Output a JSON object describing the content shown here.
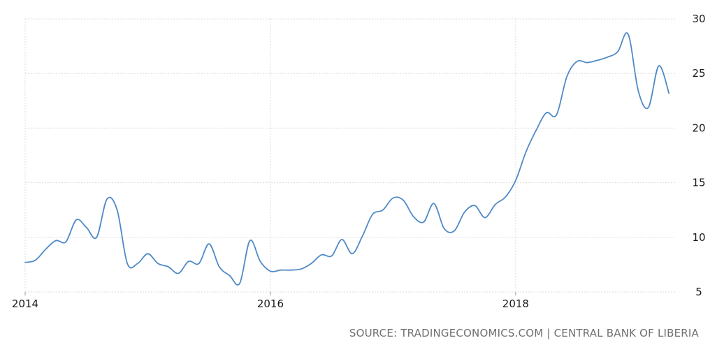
{
  "source_text": "SOURCE: TRADINGECONOMICS.COM | CENTRAL BANK OF LIBERIA",
  "chart_data": {
    "type": "line",
    "title": "",
    "xlabel": "",
    "ylabel": "",
    "x_range": [
      2014.0,
      2019.3
    ],
    "ylim": [
      5,
      30
    ],
    "y_ticks": [
      5,
      10,
      15,
      20,
      25,
      30
    ],
    "y_tick_labels": [
      "5",
      "10",
      "15",
      "20",
      "25",
      "30"
    ],
    "x_ticks": [
      2014,
      2016,
      2018
    ],
    "x_tick_labels": [
      "2014",
      "2016",
      "2018"
    ],
    "grid": true,
    "y_axis_position": "right",
    "line_color": "#4f8ac6",
    "series": [
      {
        "x": [
          2014.0,
          2014.083,
          2014.167,
          2014.25,
          2014.333,
          2014.417,
          2014.5,
          2014.583,
          2014.667,
          2014.75,
          2014.833,
          2014.917,
          2015.0,
          2015.083,
          2015.167,
          2015.25,
          2015.333,
          2015.417,
          2015.5,
          2015.583,
          2015.667,
          2015.75,
          2015.833,
          2015.917,
          2016.0,
          2016.083,
          2016.167,
          2016.25,
          2016.333,
          2016.417,
          2016.5,
          2016.583,
          2016.667,
          2016.75,
          2016.833,
          2016.917,
          2017.0,
          2017.083,
          2017.167,
          2017.25,
          2017.333,
          2017.417,
          2017.5,
          2017.583,
          2017.667,
          2017.75,
          2017.833,
          2017.917,
          2018.0,
          2018.083,
          2018.167,
          2018.25,
          2018.333,
          2018.417,
          2018.5,
          2018.583,
          2018.667,
          2018.75,
          2018.833,
          2018.917,
          2019.0,
          2019.083,
          2019.167,
          2019.25
        ],
        "y": [
          7.7,
          7.9,
          8.9,
          9.7,
          9.6,
          11.6,
          10.9,
          10.0,
          13.5,
          12.5,
          7.6,
          7.6,
          8.5,
          7.6,
          7.3,
          6.7,
          7.8,
          7.6,
          9.4,
          7.3,
          6.5,
          5.8,
          9.7,
          7.8,
          6.9,
          7.0,
          7.0,
          7.1,
          7.6,
          8.4,
          8.3,
          9.8,
          8.5,
          10.1,
          12.1,
          12.5,
          13.6,
          13.4,
          11.9,
          11.4,
          13.1,
          10.8,
          10.6,
          12.3,
          12.9,
          11.8,
          13.0,
          13.7,
          15.2,
          17.8,
          19.8,
          21.4,
          21.2,
          24.7,
          26.1,
          26.0,
          26.2,
          26.5,
          27.0,
          28.6,
          23.4,
          21.9,
          25.7,
          23.2
        ]
      }
    ]
  }
}
